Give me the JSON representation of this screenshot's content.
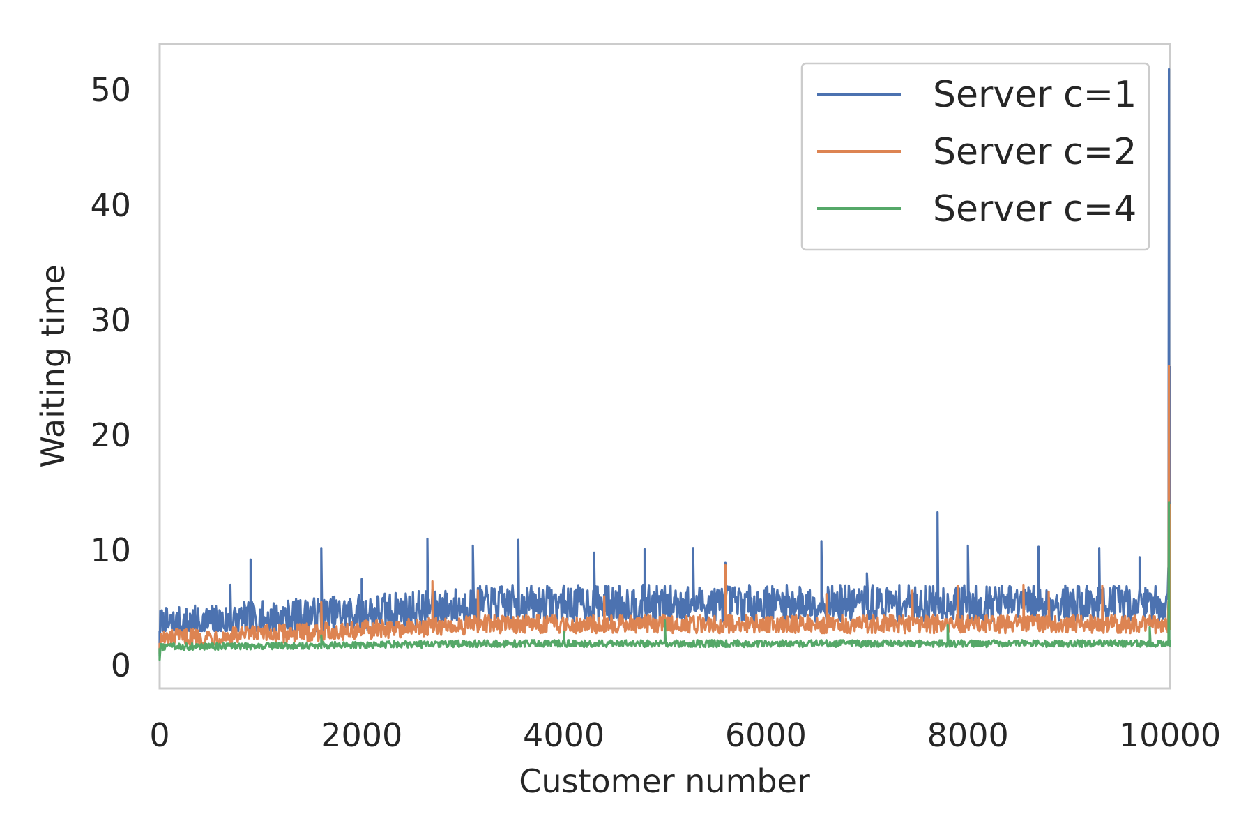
{
  "chart_data": {
    "type": "line",
    "title": "",
    "xlabel": "Customer number",
    "ylabel": "Waiting time",
    "xlim": [
      0,
      10000
    ],
    "ylim": [
      -2,
      54
    ],
    "xticks": [
      0,
      2000,
      4000,
      6000,
      8000,
      10000
    ],
    "yticks": [
      0,
      10,
      20,
      30,
      40,
      50
    ],
    "grid": false,
    "legend_position": "top-right",
    "series": [
      {
        "name": "Server c=1",
        "color": "#4c72b0",
        "points": [
          [
            0,
            0.8
          ],
          [
            50,
            3.2
          ],
          [
            300,
            4.5
          ],
          [
            700,
            7.0
          ],
          [
            900,
            9.2
          ],
          [
            1600,
            10.2
          ],
          [
            2000,
            7.5
          ],
          [
            2650,
            11.0
          ],
          [
            3100,
            10.4
          ],
          [
            3550,
            10.9
          ],
          [
            4300,
            9.8
          ],
          [
            4800,
            10.1
          ],
          [
            5280,
            10.2
          ],
          [
            5600,
            8.9
          ],
          [
            6550,
            10.8
          ],
          [
            7000,
            8.0
          ],
          [
            7700,
            13.3
          ],
          [
            8000,
            10.4
          ],
          [
            8700,
            10.3
          ],
          [
            9300,
            10.2
          ],
          [
            9700,
            9.4
          ],
          [
            9985,
            8.5
          ],
          [
            9990,
            51.8
          ],
          [
            10000,
            26.0
          ]
        ],
        "band": [
          3.0,
          6.5
        ],
        "amplitude": 3.2,
        "base_from": 3.4,
        "base_to": 5.4
      },
      {
        "name": "Server c=2",
        "color": "#dd8452",
        "points": [
          [
            0,
            1.0
          ],
          [
            50,
            2.0
          ],
          [
            1600,
            5.5
          ],
          [
            2700,
            7.3
          ],
          [
            3150,
            6.5
          ],
          [
            4400,
            6.0
          ],
          [
            5600,
            8.7
          ],
          [
            6600,
            6.2
          ],
          [
            7450,
            6.5
          ],
          [
            7900,
            6.9
          ],
          [
            8550,
            7.0
          ],
          [
            8800,
            6.4
          ],
          [
            9330,
            6.9
          ],
          [
            9985,
            5.6
          ],
          [
            9990,
            26.0
          ],
          [
            10000,
            14.0
          ]
        ],
        "band": [
          1.8,
          4.6
        ],
        "amplitude": 1.6,
        "base_from": 2.3,
        "base_to": 3.6
      },
      {
        "name": "Server c=4",
        "color": "#55a868",
        "points": [
          [
            0,
            0.5
          ],
          [
            30,
            1.3
          ],
          [
            1600,
            2.6
          ],
          [
            4000,
            2.9
          ],
          [
            5000,
            3.9
          ],
          [
            7800,
            3.5
          ],
          [
            9800,
            3.3
          ],
          [
            9985,
            2.2
          ],
          [
            9990,
            14.2
          ],
          [
            10000,
            1.6
          ]
        ],
        "band": [
          1.0,
          2.5
        ],
        "amplitude": 0.6,
        "base_from": 1.6,
        "base_to": 1.9
      }
    ]
  }
}
